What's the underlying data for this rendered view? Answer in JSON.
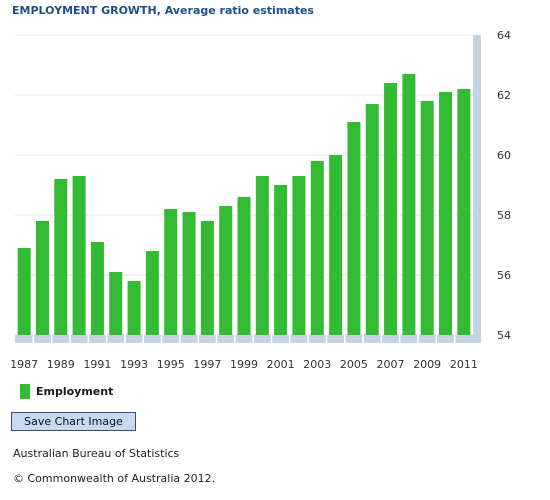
{
  "chart_title": "EMPLOYMENT GROWTH, Average ratio estimates",
  "chart_data": {
    "type": "bar",
    "title": "EMPLOYMENT GROWTH, Average ratio estimates",
    "categories": [
      "1987",
      "1988",
      "1989",
      "1990",
      "1991",
      "1992",
      "1993",
      "1994",
      "1995",
      "1996",
      "1997",
      "1998",
      "1999",
      "2000",
      "2001",
      "2002",
      "2003",
      "2004",
      "2005",
      "2006",
      "2007",
      "2008",
      "2009",
      "2010",
      "2011"
    ],
    "x_tick_labels": [
      "1987",
      "1989",
      "1991",
      "1993",
      "1995",
      "1997",
      "1999",
      "2001",
      "2003",
      "2005",
      "2007",
      "2009",
      "2011"
    ],
    "series": [
      {
        "name": "Employment",
        "color": "#33bb33",
        "values": [
          56.9,
          57.8,
          59.2,
          59.3,
          57.1,
          56.1,
          55.8,
          56.8,
          58.2,
          58.1,
          57.8,
          58.3,
          58.6,
          59.3,
          59.0,
          59.3,
          59.8,
          60.0,
          61.1,
          61.7,
          62.4,
          62.7,
          61.8,
          62.1,
          62.2
        ]
      }
    ],
    "y_ticks": [
      "54",
      "56",
      "58",
      "60",
      "62",
      "64"
    ],
    "ylim": [
      54,
      64
    ],
    "y_axis_side": "right",
    "grid": true,
    "legend_position": "bottom-left"
  },
  "legend": {
    "label": "Employment",
    "color": "#33bb33"
  },
  "save_button_label": "Save Chart Image",
  "source_text": "Australian Bureau of Statistics",
  "copyright_text": "© Commonwealth of Australia 2012."
}
